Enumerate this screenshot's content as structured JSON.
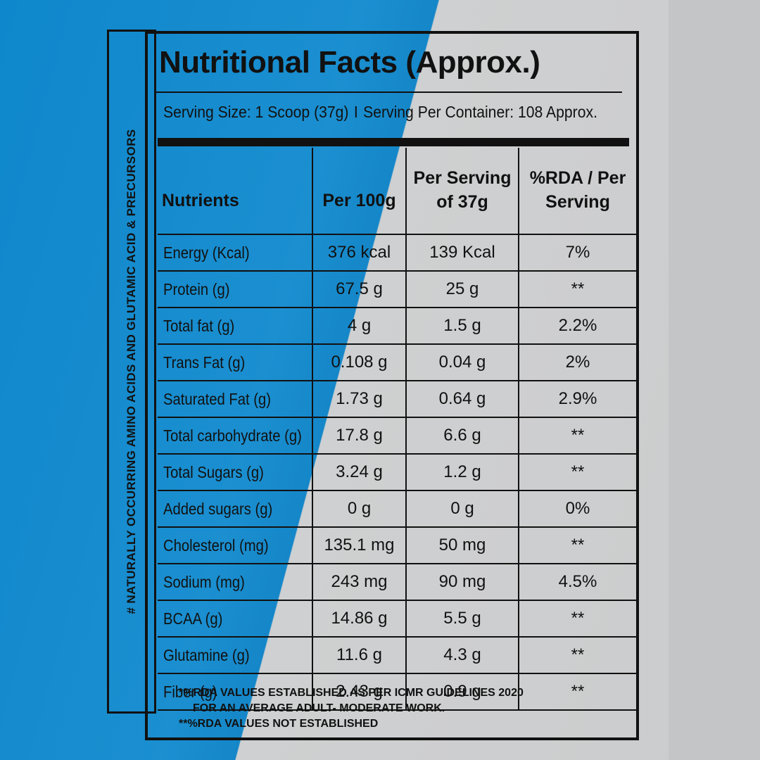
{
  "side_label": "# NATURALLY OCCURRING AMINO ACIDS AND GLUTAMIC ACID & PRECURSORS",
  "title": "Nutritional Facts (Approx.)",
  "serving": {
    "size": "Serving Size: 1 Scoop (37g)",
    "separator": "I",
    "per_container": "Serving Per Container: 108 Approx."
  },
  "table": {
    "headers": [
      "Nutrients",
      "Per 100g",
      "Per Serving of 37g",
      "%RDA / Per Serving"
    ],
    "rows": [
      [
        "Energy (Kcal)",
        "376 kcal",
        "139 Kcal",
        "7%"
      ],
      [
        "Protein (g)",
        "67.5 g",
        "25 g",
        "**"
      ],
      [
        "Total fat (g)",
        "4 g",
        "1.5 g",
        "2.2%"
      ],
      [
        "Trans Fat (g)",
        "0.108 g",
        "0.04 g",
        "2%"
      ],
      [
        "Saturated Fat (g)",
        "1.73 g",
        "0.64 g",
        "2.9%"
      ],
      [
        "Total carbohydrate (g)",
        "17.8 g",
        "6.6 g",
        "**"
      ],
      [
        "Total Sugars (g)",
        "3.24 g",
        "1.2 g",
        "**"
      ],
      [
        "Added sugars (g)",
        "0 g",
        "0 g",
        "0%"
      ],
      [
        "Cholesterol (mg)",
        "135.1 mg",
        "50 mg",
        "**"
      ],
      [
        "Sodium (mg)",
        "243 mg",
        "90 mg",
        "4.5%"
      ],
      [
        "BCAA (g)",
        "14.86 g",
        "5.5 g",
        "**"
      ],
      [
        "Glutamine (g)",
        "11.6 g",
        "4.3 g",
        "**"
      ],
      [
        "Fiber (g)",
        "2.43 g",
        "0.9 g",
        "**"
      ]
    ]
  },
  "footnotes": {
    "line1": "*%RDA VALUES ESTABLISHED AS PER ICMR GUIDELINES 2020",
    "line2": "FOR AN AVERAGE ADULT- MODERATE WORK.",
    "line3": "**%RDA VALUES NOT ESTABLISHED"
  },
  "colors": {
    "blue": "#1587c9",
    "grey": "#cbcccd",
    "ink": "#111111"
  }
}
